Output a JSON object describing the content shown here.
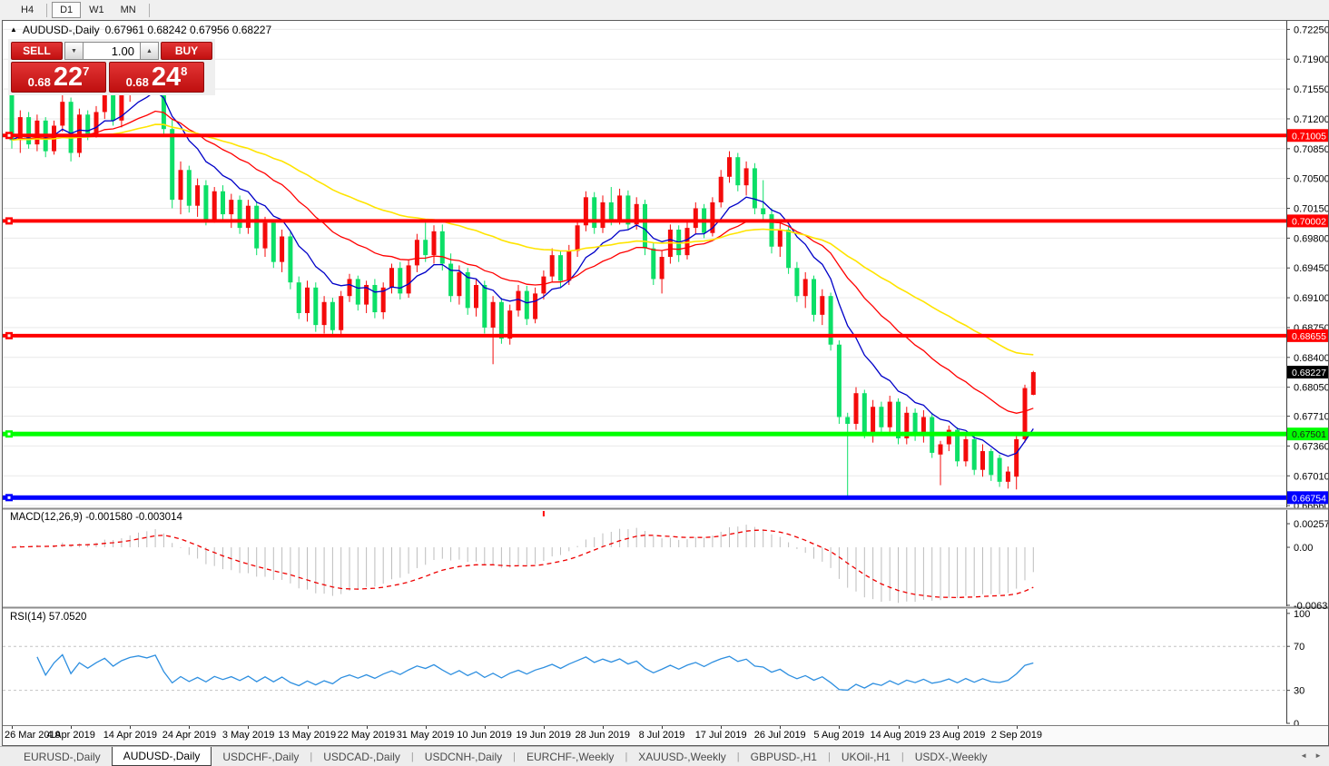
{
  "toolbar": {
    "periods": [
      "H4",
      "D1",
      "W1",
      "MN"
    ],
    "active_period": "D1"
  },
  "chart_header": {
    "collapse_icon": "▲",
    "symbol_period": "AUDUSD-,Daily",
    "ohlc": "0.67961 0.68242 0.67956 0.68227"
  },
  "trade_panel": {
    "sell_label": "SELL",
    "buy_label": "BUY",
    "volume": "1.00",
    "volume_down_icon": "▼",
    "volume_up_icon": "▲",
    "sell_price": {
      "small": "0.68",
      "big": "22",
      "sup": "7"
    },
    "buy_price": {
      "small": "0.68",
      "big": "24",
      "sup": "8"
    }
  },
  "tabbar": {
    "nav_left": "◄",
    "nav_right": "►",
    "tabs": [
      {
        "label": "EURUSD-,Daily",
        "active": false
      },
      {
        "label": "AUDUSD-,Daily",
        "active": true
      },
      {
        "label": "USDCHF-,Daily",
        "active": false
      },
      {
        "label": "USDCAD-,Daily",
        "active": false
      },
      {
        "label": "USDCNH-,Daily",
        "active": false
      },
      {
        "label": "EURCHF-,Weekly",
        "active": false
      },
      {
        "label": "XAUUSD-,Weekly",
        "active": false
      },
      {
        "label": "GBPUSD-,H1",
        "active": false
      },
      {
        "label": "UKOil-,H1",
        "active": false
      },
      {
        "label": "USDX-,Weekly",
        "active": false
      }
    ]
  },
  "chart_data": {
    "type": "candlestick",
    "symbol": "AUDUSD-,Daily",
    "colors": {
      "up": "#f40b0b",
      "down": "#0cdf67",
      "ma_fast": "#0000c8",
      "ma_mid": "#ff0000",
      "ma_slow": "#ffe400",
      "grid": "#e9e9e9",
      "macd_hist": "#bdbdbd",
      "macd_signal": "#ee0000",
      "rsi": "#2e8fe0",
      "axis_line": "#3f3f3f"
    },
    "y_axis": {
      "range": [
        0.6664,
        0.7235
      ],
      "ticks": [
        "0.72250",
        "0.71900",
        "0.71550",
        "0.71200",
        "0.70850",
        "0.70500",
        "0.70150",
        "0.69800",
        "0.69450",
        "0.69100",
        "0.68750",
        "0.68400",
        "0.68050",
        "0.67710",
        "0.67360",
        "0.67010",
        "0.66660"
      ]
    },
    "x_axis": {
      "labels": [
        {
          "index": 0,
          "text": "26 Mar 2019"
        },
        {
          "index": 7,
          "text": "4 Apr 2019"
        },
        {
          "index": 14,
          "text": "14 Apr 2019"
        },
        {
          "index": 21,
          "text": "24 Apr 2019"
        },
        {
          "index": 28,
          "text": "3 May 2019"
        },
        {
          "index": 35,
          "text": "13 May 2019"
        },
        {
          "index": 42,
          "text": "22 May 2019"
        },
        {
          "index": 49,
          "text": "31 May 2019"
        },
        {
          "index": 56,
          "text": "10 Jun 2019"
        },
        {
          "index": 63,
          "text": "19 Jun 2019"
        },
        {
          "index": 70,
          "text": "28 Jun 2019"
        },
        {
          "index": 77,
          "text": "8 Jul 2019"
        },
        {
          "index": 84,
          "text": "17 Jul 2019"
        },
        {
          "index": 91,
          "text": "26 Jul 2019"
        },
        {
          "index": 98,
          "text": "5 Aug 2019"
        },
        {
          "index": 105,
          "text": "14 Aug 2019"
        },
        {
          "index": 112,
          "text": "23 Aug 2019"
        },
        {
          "index": 119,
          "text": "2 Sep 2019"
        }
      ]
    },
    "moving_averages": [
      {
        "period": 10,
        "color_key": "ma_fast",
        "width": 1.3
      },
      {
        "period": 25,
        "color_key": "ma_mid",
        "width": 1.3
      },
      {
        "period": 55,
        "color_key": "ma_slow",
        "width": 1.6
      }
    ],
    "hlines": [
      {
        "price": 0.71005,
        "label": "0.71005",
        "color": "#ff0000",
        "text_color": "#ffffff",
        "width": 4
      },
      {
        "price": 0.70002,
        "label": "0.70002",
        "color": "#ff0000",
        "text_color": "#ffffff",
        "width": 4
      },
      {
        "price": 0.68655,
        "label": "0.68655",
        "color": "#ff0000",
        "text_color": "#ffffff",
        "width": 4
      },
      {
        "price": 0.67501,
        "label": "0.67501",
        "color": "#00ff00",
        "text_color": "#1a1a1a",
        "width": 5
      },
      {
        "price": 0.66754,
        "label": "0.66754",
        "color": "#0000ff",
        "text_color": "#ffffff",
        "width": 5
      }
    ],
    "current_price": {
      "value": 0.68227,
      "label": "0.68227",
      "bg": "#000000",
      "text_color": "#ffffff"
    },
    "indicators": {
      "macd": {
        "label": "MACD(12,26,9) -0.001580 -0.003014",
        "params": [
          12,
          26,
          9
        ],
        "values": [
          "-0.001580",
          "-0.003014"
        ],
        "axis_labels": [
          "0.002574",
          "0.00",
          "-0.006326"
        ],
        "range": [
          0.00406,
          -0.00643
        ],
        "marker_index": 63
      },
      "rsi": {
        "label": "RSI(14) 57.0520",
        "period": 14,
        "value": "57.0520",
        "axis_labels": [
          "100",
          "70",
          "30",
          "0"
        ],
        "levels": [
          70,
          30
        ]
      }
    },
    "candles": [
      [
        0.7162,
        0.7168,
        0.7085,
        0.7095
      ],
      [
        0.7095,
        0.713,
        0.708,
        0.7122
      ],
      [
        0.7122,
        0.7128,
        0.7085,
        0.709
      ],
      [
        0.709,
        0.7125,
        0.7082,
        0.7118
      ],
      [
        0.7118,
        0.7122,
        0.7075,
        0.7082
      ],
      [
        0.7082,
        0.7118,
        0.7078,
        0.7112
      ],
      [
        0.7112,
        0.7148,
        0.7105,
        0.714
      ],
      [
        0.714,
        0.7145,
        0.707,
        0.708
      ],
      [
        0.708,
        0.7132,
        0.7075,
        0.7125
      ],
      [
        0.7125,
        0.713,
        0.7095,
        0.7102
      ],
      [
        0.7102,
        0.7135,
        0.7098,
        0.7128
      ],
      [
        0.7128,
        0.716,
        0.712,
        0.7152
      ],
      [
        0.7152,
        0.7158,
        0.7112,
        0.7118
      ],
      [
        0.7118,
        0.7155,
        0.711,
        0.7148
      ],
      [
        0.7148,
        0.7175,
        0.714,
        0.7168
      ],
      [
        0.7168,
        0.7185,
        0.715,
        0.7178
      ],
      [
        0.7178,
        0.7195,
        0.7165,
        0.717
      ],
      [
        0.717,
        0.7192,
        0.716,
        0.7186
      ],
      [
        0.7186,
        0.7192,
        0.71,
        0.7108
      ],
      [
        0.7108,
        0.712,
        0.7015,
        0.7025
      ],
      [
        0.7025,
        0.707,
        0.7008,
        0.706
      ],
      [
        0.706,
        0.7065,
        0.701,
        0.7018
      ],
      [
        0.7018,
        0.705,
        0.7005,
        0.7042
      ],
      [
        0.7042,
        0.7048,
        0.6995,
        0.7002
      ],
      [
        0.7002,
        0.704,
        0.6998,
        0.7035
      ],
      [
        0.7035,
        0.7042,
        0.7,
        0.7008
      ],
      [
        0.7008,
        0.7032,
        0.6992,
        0.7025
      ],
      [
        0.7025,
        0.703,
        0.6985,
        0.6992
      ],
      [
        0.6992,
        0.7025,
        0.6985,
        0.7018
      ],
      [
        0.7018,
        0.7022,
        0.696,
        0.6968
      ],
      [
        0.6968,
        0.7005,
        0.6958,
        0.6998
      ],
      [
        0.6998,
        0.7002,
        0.6945,
        0.6952
      ],
      [
        0.6952,
        0.699,
        0.694,
        0.6982
      ],
      [
        0.6982,
        0.6988,
        0.692,
        0.6928
      ],
      [
        0.6928,
        0.6935,
        0.6885,
        0.6892
      ],
      [
        0.6892,
        0.693,
        0.6882,
        0.6922
      ],
      [
        0.6922,
        0.6928,
        0.687,
        0.6878
      ],
      [
        0.6878,
        0.6912,
        0.6868,
        0.6905
      ],
      [
        0.6905,
        0.691,
        0.6865,
        0.6872
      ],
      [
        0.6872,
        0.6918,
        0.6866,
        0.6912
      ],
      [
        0.6912,
        0.6938,
        0.6905,
        0.6932
      ],
      [
        0.6932,
        0.6936,
        0.6895,
        0.6902
      ],
      [
        0.6902,
        0.693,
        0.6892,
        0.6925
      ],
      [
        0.6925,
        0.6932,
        0.6886,
        0.6893
      ],
      [
        0.6893,
        0.6928,
        0.6885,
        0.6922
      ],
      [
        0.6922,
        0.695,
        0.6915,
        0.6945
      ],
      [
        0.6945,
        0.6952,
        0.6908,
        0.6915
      ],
      [
        0.6915,
        0.6955,
        0.691,
        0.6948
      ],
      [
        0.6948,
        0.6985,
        0.694,
        0.6978
      ],
      [
        0.6978,
        0.6998,
        0.6952,
        0.696
      ],
      [
        0.696,
        0.6995,
        0.695,
        0.6988
      ],
      [
        0.6988,
        0.6996,
        0.6942,
        0.695
      ],
      [
        0.695,
        0.6962,
        0.6905,
        0.6912
      ],
      [
        0.6912,
        0.6948,
        0.6902,
        0.694
      ],
      [
        0.694,
        0.6945,
        0.689,
        0.6898
      ],
      [
        0.6898,
        0.6932,
        0.6888,
        0.6925
      ],
      [
        0.6925,
        0.693,
        0.6868,
        0.6875
      ],
      [
        0.6875,
        0.6912,
        0.6832,
        0.6905
      ],
      [
        0.6905,
        0.691,
        0.6856,
        0.6862
      ],
      [
        0.6862,
        0.6902,
        0.6855,
        0.6895
      ],
      [
        0.6895,
        0.6925,
        0.6888,
        0.6918
      ],
      [
        0.6918,
        0.6924,
        0.6878,
        0.6885
      ],
      [
        0.6885,
        0.6922,
        0.688,
        0.6915
      ],
      [
        0.6915,
        0.6942,
        0.6908,
        0.6935
      ],
      [
        0.6935,
        0.6968,
        0.6928,
        0.696
      ],
      [
        0.696,
        0.6965,
        0.6922,
        0.693
      ],
      [
        0.693,
        0.6972,
        0.6925,
        0.6965
      ],
      [
        0.6965,
        0.7002,
        0.6958,
        0.6995
      ],
      [
        0.6995,
        0.7035,
        0.6988,
        0.7028
      ],
      [
        0.7028,
        0.7034,
        0.6985,
        0.6992
      ],
      [
        0.6992,
        0.703,
        0.6986,
        0.7022
      ],
      [
        0.7022,
        0.704,
        0.6995,
        0.7002
      ],
      [
        0.7002,
        0.7038,
        0.6996,
        0.703
      ],
      [
        0.703,
        0.7036,
        0.699,
        0.6996
      ],
      [
        0.6996,
        0.7028,
        0.699,
        0.702
      ],
      [
        0.702,
        0.7025,
        0.696,
        0.6968
      ],
      [
        0.6968,
        0.6975,
        0.6925,
        0.6932
      ],
      [
        0.6932,
        0.6965,
        0.6915,
        0.6958
      ],
      [
        0.6958,
        0.6996,
        0.695,
        0.699
      ],
      [
        0.699,
        0.6995,
        0.6952,
        0.696
      ],
      [
        0.696,
        0.7,
        0.6955,
        0.6992
      ],
      [
        0.6992,
        0.7022,
        0.6985,
        0.7015
      ],
      [
        0.7015,
        0.702,
        0.698,
        0.6986
      ],
      [
        0.6986,
        0.7028,
        0.6982,
        0.7022
      ],
      [
        0.7022,
        0.706,
        0.7016,
        0.7052
      ],
      [
        0.7052,
        0.7082,
        0.7045,
        0.7075
      ],
      [
        0.7075,
        0.708,
        0.7035,
        0.7042
      ],
      [
        0.7042,
        0.707,
        0.703,
        0.7062
      ],
      [
        0.7062,
        0.7068,
        0.7008,
        0.7015
      ],
      [
        0.7015,
        0.7048,
        0.7002,
        0.7008
      ],
      [
        0.7008,
        0.7015,
        0.6962,
        0.697
      ],
      [
        0.697,
        0.6998,
        0.6958,
        0.699
      ],
      [
        0.699,
        0.6995,
        0.6938,
        0.6945
      ],
      [
        0.6945,
        0.6952,
        0.6905,
        0.6912
      ],
      [
        0.6912,
        0.694,
        0.6898,
        0.6932
      ],
      [
        0.6932,
        0.6936,
        0.6882,
        0.689
      ],
      [
        0.689,
        0.692,
        0.6878,
        0.6912
      ],
      [
        0.6912,
        0.6916,
        0.6848,
        0.6855
      ],
      [
        0.6855,
        0.686,
        0.6762,
        0.677
      ],
      [
        0.677,
        0.6775,
        0.6677,
        0.6762
      ],
      [
        0.6762,
        0.6805,
        0.6755,
        0.6798
      ],
      [
        0.6798,
        0.6802,
        0.6745,
        0.6752
      ],
      [
        0.6752,
        0.679,
        0.674,
        0.6782
      ],
      [
        0.6782,
        0.6788,
        0.6752,
        0.6758
      ],
      [
        0.6758,
        0.6795,
        0.675,
        0.6788
      ],
      [
        0.6788,
        0.6792,
        0.6738,
        0.6745
      ],
      [
        0.6745,
        0.6782,
        0.6738,
        0.6775
      ],
      [
        0.6775,
        0.678,
        0.6742,
        0.6748
      ],
      [
        0.6748,
        0.6778,
        0.674,
        0.677
      ],
      [
        0.677,
        0.6775,
        0.6722,
        0.6728
      ],
      [
        0.6726,
        0.6742,
        0.669,
        0.6738
      ],
      [
        0.6738,
        0.676,
        0.673,
        0.6755
      ],
      [
        0.6755,
        0.6758,
        0.6712,
        0.6718
      ],
      [
        0.6718,
        0.675,
        0.6712,
        0.6744
      ],
      [
        0.6744,
        0.6748,
        0.6702,
        0.6708
      ],
      [
        0.6708,
        0.6738,
        0.67,
        0.673
      ],
      [
        0.673,
        0.6733,
        0.6695,
        0.6702
      ],
      [
        0.6722,
        0.6726,
        0.6688,
        0.6694
      ],
      [
        0.6694,
        0.6712,
        0.6686,
        0.6706
      ],
      [
        0.67,
        0.6748,
        0.6685,
        0.6744
      ],
      [
        0.6744,
        0.6808,
        0.674,
        0.6804
      ],
      [
        0.67961,
        0.68242,
        0.67956,
        0.68227
      ]
    ]
  }
}
